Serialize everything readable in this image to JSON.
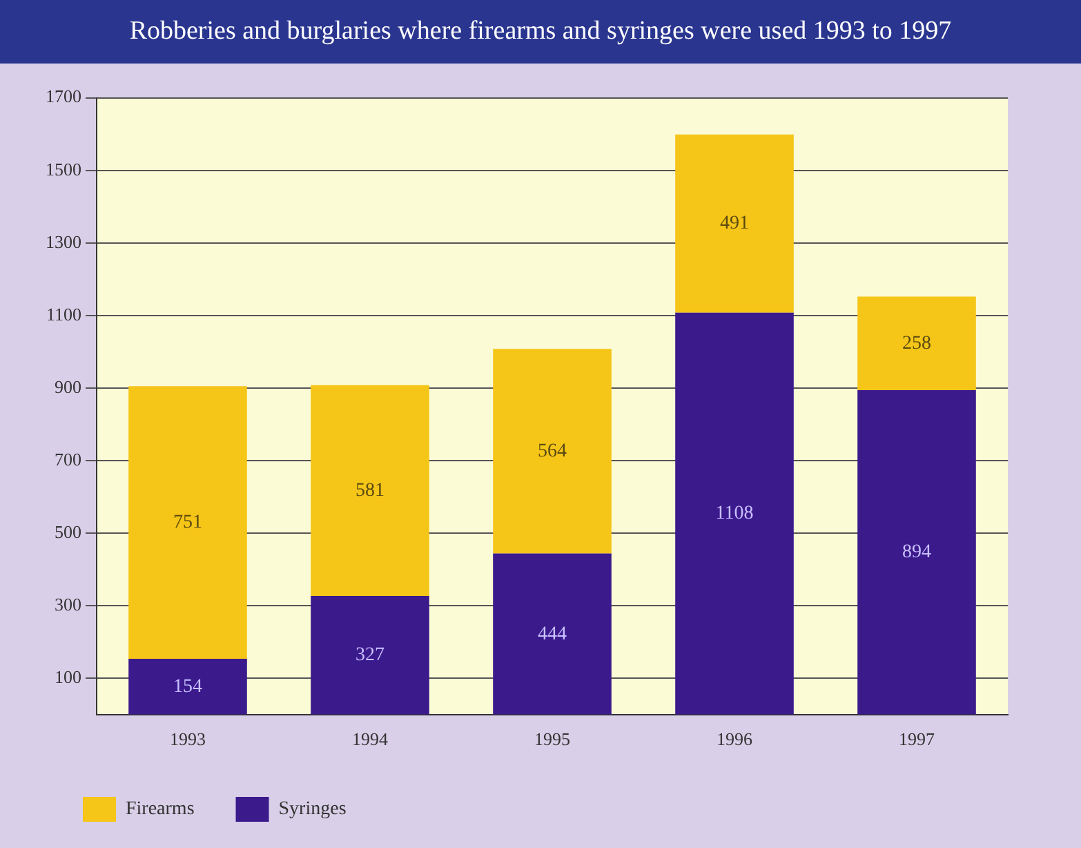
{
  "chart_data": {
    "type": "bar",
    "title": "Robberies and burglaries where firearms and syringes were used 1993 to 1997",
    "categories": [
      "1993",
      "1994",
      "1995",
      "1996",
      "1997"
    ],
    "stacked": true,
    "series": [
      {
        "name": "Syringes",
        "color": "#3b1a8c",
        "values": [
          154,
          327,
          444,
          1108,
          894
        ]
      },
      {
        "name": "Firearms",
        "color": "#f5c518",
        "values": [
          751,
          581,
          564,
          491,
          258
        ]
      }
    ],
    "ylim": [
      0,
      1700
    ],
    "yticks": [
      100,
      300,
      500,
      700,
      900,
      1100,
      1300,
      1500,
      1700
    ],
    "grid": "y",
    "data_labels": true,
    "legend": "bottom"
  }
}
